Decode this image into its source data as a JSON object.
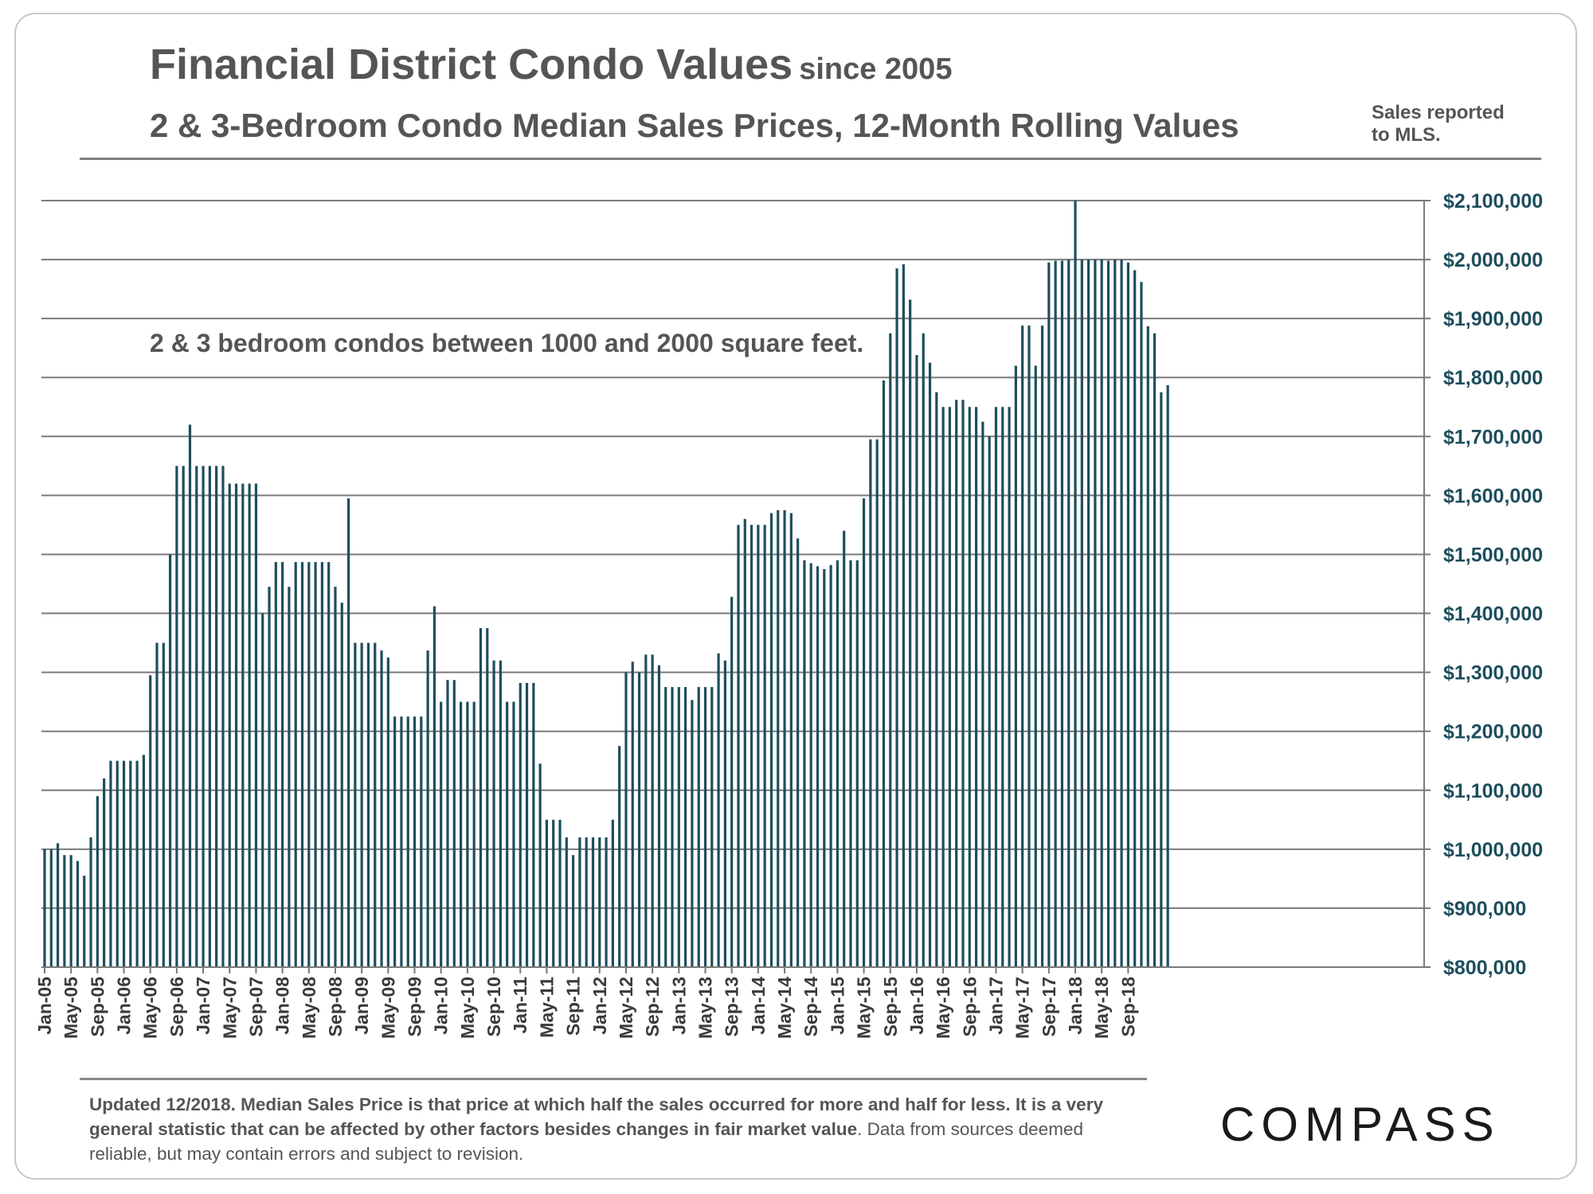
{
  "header": {
    "title_main": "Financial District Condo Values",
    "title_since": "since 2005",
    "subtitle": "2 & 3-Bedroom Condo Median Sales Prices, 12-Month Rolling Values",
    "source_line1": "Sales reported",
    "source_line2": "to MLS."
  },
  "footer": {
    "bold_text": "Updated 12/2018. Median Sales Price is that price at which half the sales occurred for more and half for less. It is a very general statistic that can be affected by other factors besides changes in fair market value",
    "normal_text": ". Data from sources deemed reliable, but may contain errors and subject to revision.",
    "logo": "COMPASS"
  },
  "colors": {
    "bar": "#1e4e5e",
    "grid": "#7a7a7a",
    "axis_label": "#1e4e5e",
    "text": "#555555"
  },
  "chart_data": {
    "type": "bar",
    "title": "Financial District Condo Values since 2005",
    "subtitle": "2 & 3-Bedroom Condo Median Sales Prices, 12-Month Rolling Values",
    "annotation": "2 & 3 bedroom condos between 1000 and 2000 square feet.",
    "xlabel": "",
    "ylabel": "",
    "ylim": [
      800000,
      2100000
    ],
    "grid": true,
    "y_ticks": [
      800000,
      900000,
      1000000,
      1100000,
      1200000,
      1300000,
      1400000,
      1500000,
      1600000,
      1700000,
      1800000,
      1900000,
      2000000,
      2100000
    ],
    "y_tick_labels": [
      "$800,000",
      "$900,000",
      "$1,000,000",
      "$1,100,000",
      "$1,200,000",
      "$1,300,000",
      "$1,400,000",
      "$1,500,000",
      "$1,600,000",
      "$1,700,000",
      "$1,800,000",
      "$1,900,000",
      "$2,000,000",
      "$2,100,000"
    ],
    "x_tick_labels": [
      "Jan-05",
      "May-05",
      "Sep-05",
      "Jan-06",
      "May-06",
      "Sep-06",
      "Jan-07",
      "May-07",
      "Sep-07",
      "Jan-08",
      "May-08",
      "Sep-08",
      "Jan-09",
      "May-09",
      "Sep-09",
      "Jan-10",
      "May-10",
      "Sep-10",
      "Jan-11",
      "May-11",
      "Sep-11",
      "Jan-12",
      "May-12",
      "Sep-12",
      "Jan-13",
      "May-13",
      "Sep-13",
      "Jan-14",
      "May-14",
      "Sep-14",
      "Jan-15",
      "May-15",
      "Sep-15",
      "Jan-16",
      "May-16",
      "Sep-16",
      "Jan-17",
      "May-17",
      "Sep-17",
      "Jan-18",
      "May-18",
      "Sep-18"
    ],
    "start_month": "Jan-05",
    "values": [
      1000000,
      1000000,
      1010000,
      990000,
      990000,
      980000,
      955000,
      1020000,
      1090000,
      1120000,
      1150000,
      1150000,
      1150000,
      1150000,
      1150000,
      1160000,
      1295000,
      1350000,
      1350000,
      1500000,
      1650000,
      1650000,
      1720000,
      1650000,
      1650000,
      1650000,
      1650000,
      1650000,
      1620000,
      1620000,
      1620000,
      1620000,
      1620000,
      1400000,
      1445000,
      1487000,
      1487000,
      1445000,
      1487000,
      1487000,
      1487000,
      1487000,
      1487000,
      1487000,
      1445000,
      1418000,
      1595000,
      1350000,
      1350000,
      1350000,
      1350000,
      1337000,
      1325000,
      1225000,
      1225000,
      1225000,
      1225000,
      1225000,
      1337000,
      1412000,
      1250000,
      1287000,
      1287000,
      1250000,
      1250000,
      1250000,
      1375000,
      1375000,
      1320000,
      1320000,
      1250000,
      1250000,
      1282000,
      1282000,
      1282000,
      1145000,
      1050000,
      1050000,
      1050000,
      1020000,
      990000,
      1020000,
      1020000,
      1020000,
      1020000,
      1020000,
      1050000,
      1175000,
      1300000,
      1318000,
      1300000,
      1330000,
      1330000,
      1312000,
      1275000,
      1275000,
      1275000,
      1275000,
      1253000,
      1275000,
      1275000,
      1275000,
      1332000,
      1320000,
      1428000,
      1550000,
      1560000,
      1550000,
      1550000,
      1550000,
      1570000,
      1575000,
      1575000,
      1570000,
      1527000,
      1490000,
      1485000,
      1480000,
      1475000,
      1482000,
      1490000,
      1540000,
      1490000,
      1490000,
      1595000,
      1695000,
      1695000,
      1795000,
      1875000,
      1985000,
      1992000,
      1932000,
      1838000,
      1875000,
      1825000,
      1775000,
      1750000,
      1750000,
      1762000,
      1762000,
      1750000,
      1750000,
      1725000,
      1700000,
      1750000,
      1750000,
      1750000,
      1820000,
      1888000,
      1888000,
      1820000,
      1888000,
      1995000,
      1998000,
      1998000,
      2000000,
      2100000,
      2000000,
      2000000,
      2000000,
      2000000,
      1998000,
      2000000,
      2000000,
      1995000,
      1982000,
      1962000,
      1887000,
      1875000,
      1775000,
      1787000
    ]
  }
}
